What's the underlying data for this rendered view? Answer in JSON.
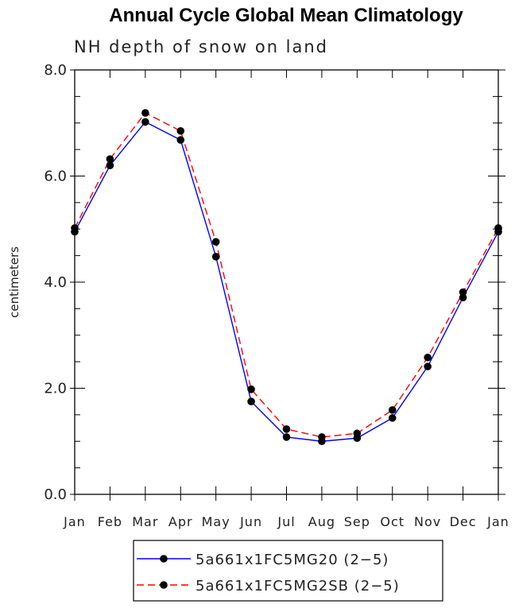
{
  "chart_data": {
    "type": "line",
    "title": "Annual Cycle Global Mean Climatology",
    "subtitle": "NH depth of snow on land",
    "xlabel": "",
    "ylabel": "centimeters",
    "categories": [
      "Jan",
      "Feb",
      "Mar",
      "Apr",
      "May",
      "Jun",
      "Jul",
      "Aug",
      "Sep",
      "Oct",
      "Nov",
      "Dec",
      "Jan"
    ],
    "ylim": [
      0,
      8
    ],
    "yticks": [
      0,
      2,
      4,
      6,
      8
    ],
    "ytick_labels": [
      "0.0",
      "2.0",
      "4.0",
      "6.0",
      "8.0"
    ],
    "grid": false,
    "legend_position": "bottom-center",
    "series": [
      {
        "name": "5a661x1FC5MG20 (2−5)",
        "color": "#0000ff",
        "dash": "solid",
        "marker": "filled-circle",
        "values": [
          4.95,
          6.2,
          7.02,
          6.68,
          4.48,
          1.75,
          1.08,
          1.0,
          1.06,
          1.44,
          2.41,
          3.71,
          4.95
        ]
      },
      {
        "name": "5a661x1FC5MG2SB (2−5)",
        "color": "#ff0000",
        "dash": "dashed",
        "marker": "filled-circle",
        "values": [
          5.02,
          6.32,
          7.19,
          6.85,
          4.76,
          1.98,
          1.23,
          1.08,
          1.15,
          1.59,
          2.58,
          3.81,
          5.02
        ]
      }
    ]
  }
}
